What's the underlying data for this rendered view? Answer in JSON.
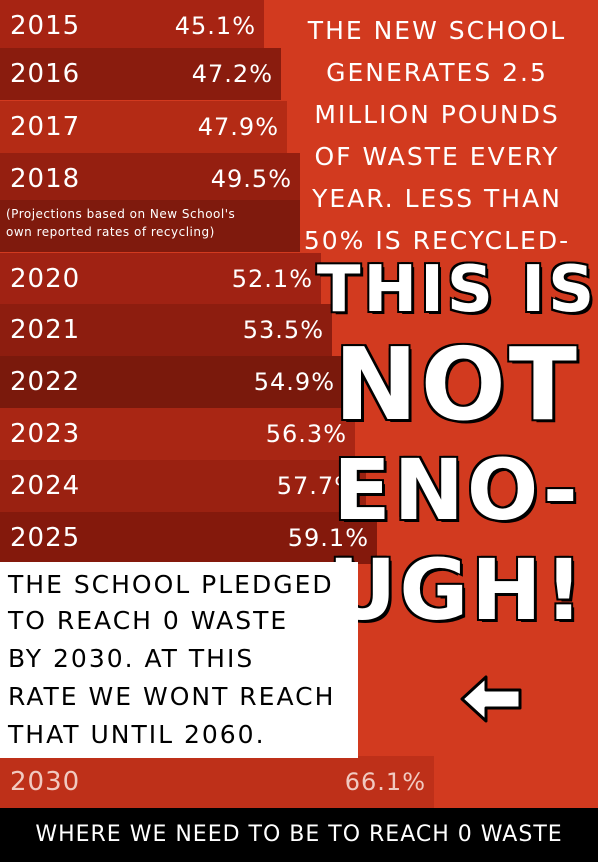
{
  "chart_data": {
    "type": "bar",
    "categories": [
      "2015",
      "2016",
      "2017",
      "2018",
      "2020",
      "2021",
      "2022",
      "2023",
      "2024",
      "2025",
      "2030"
    ],
    "value_labels": [
      "45.1%",
      "47.2%",
      "47.9%",
      "49.5%",
      "52.1%",
      "53.5%",
      "54.9%",
      "56.3%",
      "57.7%",
      "59.1%",
      "66.1%"
    ],
    "values": [
      45.1,
      47.2,
      47.9,
      49.5,
      52.1,
      53.5,
      54.9,
      56.3,
      57.7,
      59.1,
      66.1
    ],
    "colors": [
      "#a72413",
      "#8a1c0e",
      "#b42b15",
      "#951f10",
      "#a02213",
      "#8d1d0f",
      "#7a190c",
      "#a92614",
      "#9a2111",
      "#84190c",
      "#be3019"
    ],
    "annotation": [
      "(Projections based on New School's",
      "own reported rates of recycling)"
    ],
    "footer": "WHERE WE NEED TO BE TO REACH 0 WASTE"
  },
  "top_text": [
    "THE NEW SCHOOL",
    "GENERATES 2.5",
    "MILLION POUNDS",
    "OF WASTE EVERY",
    "YEAR. LESS THAN",
    "50% IS RECYCLED-"
  ],
  "big_text": [
    "THIS IS",
    "NOT",
    "ENO-",
    "UGH!"
  ],
  "pledge_text": [
    "THE SCHOOL PLEDGED",
    "TO REACH 0 WASTE",
    "BY 2030. AT THIS",
    "RATE WE WONT REACH",
    "THAT UNTIL 2060."
  ],
  "arrow_icon": "left-arrow-icon"
}
